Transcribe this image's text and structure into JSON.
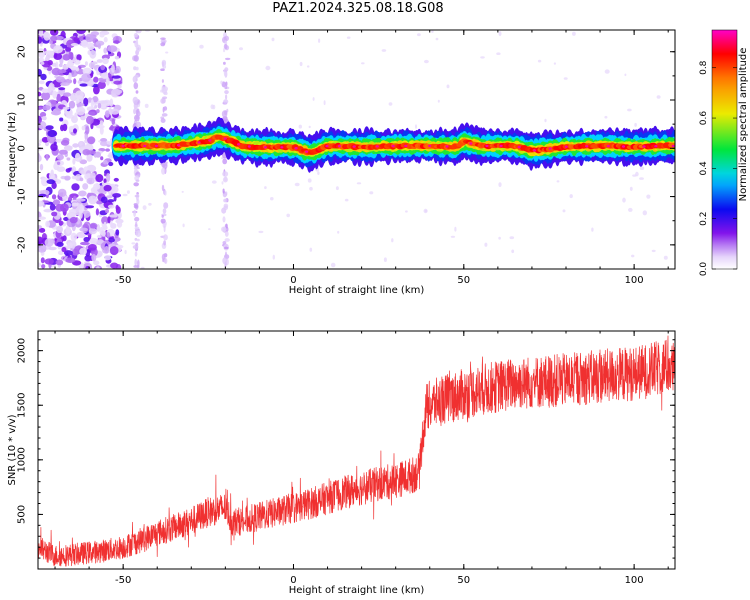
{
  "title": "PAZ1.2024.325.08.18.G08",
  "chart_data": [
    {
      "type": "heatmap",
      "xlabel": "Height of straight line (km)",
      "ylabel": "Frequency (Hz)",
      "xlim": [
        -75,
        112
      ],
      "ylim": [
        -25,
        24.5
      ],
      "xticks": [
        -50,
        0,
        50,
        100
      ],
      "xtick_labels": [
        "-50",
        "0",
        "50",
        "100"
      ],
      "yticks": [
        -20,
        -10,
        0,
        10,
        20
      ],
      "ytick_labels": [
        "-20",
        "-10",
        "0",
        "10",
        "20"
      ],
      "colorbar": {
        "label": "Normalized spectral amplitude",
        "range": [
          0,
          0.95
        ],
        "ticks": [
          0.0,
          0.2,
          0.4,
          0.6,
          0.8
        ],
        "tick_labels": [
          "0.0",
          "0.2",
          "0.4",
          "0.6",
          "0.8"
        ],
        "colormap": "rainbow (white-violet-blue-cyan-green-yellow-orange-red-magenta)"
      },
      "ridge": {
        "x": [
          -52,
          -45,
          -35,
          -30,
          -25,
          -22,
          -20,
          -15,
          -10,
          0,
          3,
          5,
          10,
          20,
          30,
          40,
          48,
          50,
          52,
          55,
          60,
          65,
          70,
          80,
          90,
          100,
          110,
          112
        ],
        "frequency": [
          0.5,
          0.5,
          0.5,
          1.0,
          1.5,
          2.5,
          2.0,
          0.5,
          0.2,
          0.2,
          -0.5,
          -1.0,
          0.5,
          0.3,
          0.5,
          0.5,
          0.3,
          1.5,
          1.0,
          0.5,
          0.5,
          0.5,
          -0.5,
          0.3,
          0.5,
          0.3,
          0.5,
          0.5
        ]
      },
      "noise_region_x": [
        -75,
        -50
      ]
    },
    {
      "type": "line",
      "xlabel": "Height of straight line (km)",
      "ylabel": "SNR (10 * v/v)",
      "xlim": [
        -75,
        112
      ],
      "ylim": [
        0,
        2180
      ],
      "xticks": [
        -50,
        0,
        50,
        100
      ],
      "xtick_labels": [
        "-50",
        "0",
        "50",
        "100"
      ],
      "yticks": [
        500,
        1000,
        1500,
        2000
      ],
      "ytick_labels": [
        "500",
        "1000",
        "1500",
        "2000"
      ],
      "series": [
        {
          "color": "#f03030",
          "x": [
            -75,
            -70,
            -65,
            -60,
            -55,
            -50,
            -45,
            -40,
            -35,
            -30,
            -25,
            -20,
            -18,
            -15,
            -10,
            -5,
            0,
            5,
            10,
            15,
            20,
            25,
            30,
            35,
            37,
            38,
            39,
            40,
            45,
            50,
            55,
            60,
            65,
            70,
            75,
            80,
            85,
            90,
            95,
            100,
            105,
            110,
            112
          ],
          "y": [
            200,
            120,
            130,
            150,
            170,
            200,
            260,
            330,
            380,
            440,
            520,
            560,
            430,
            440,
            480,
            520,
            560,
            600,
            650,
            700,
            740,
            780,
            810,
            860,
            900,
            1250,
            1480,
            1500,
            1560,
            1600,
            1640,
            1670,
            1700,
            1710,
            1720,
            1730,
            1750,
            1760,
            1780,
            1790,
            1820,
            1860,
            1820
          ]
        }
      ]
    }
  ]
}
